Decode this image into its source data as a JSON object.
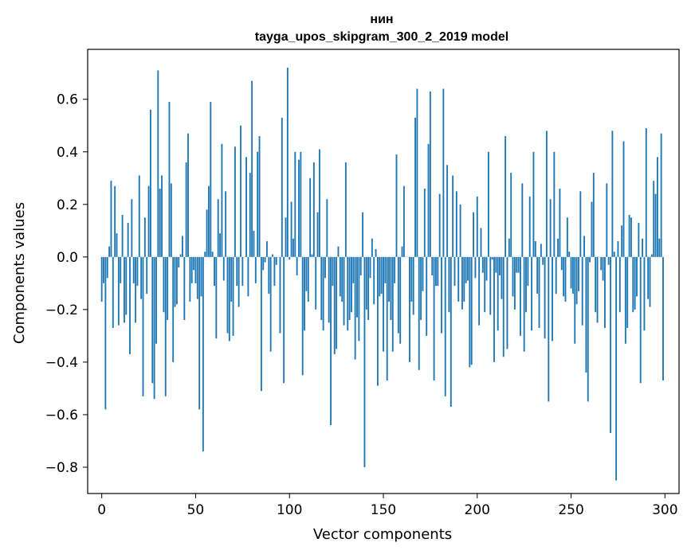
{
  "chart_data": {
    "type": "bar",
    "title": "нин",
    "subtitle": "tayga_upos_skipgram_300_2_2019 model",
    "xlabel": "Vector components",
    "ylabel": "Components values",
    "xlim": [
      -7.5,
      307.5
    ],
    "ylim": [
      -0.9,
      0.79
    ],
    "xticks": [
      0,
      50,
      100,
      150,
      200,
      250,
      300
    ],
    "yticks": [
      -0.8,
      -0.6,
      -0.4,
      -0.2,
      0.0,
      0.2,
      0.4,
      0.6
    ],
    "ytick_labels": [
      "−0.8",
      "−0.6",
      "−0.4",
      "−0.2",
      "0.0",
      "0.2",
      "0.4",
      "0.6"
    ],
    "bar_color": "#1f77b4",
    "values": [
      -0.17,
      -0.1,
      -0.58,
      -0.08,
      0.04,
      0.29,
      -0.27,
      0.27,
      0.09,
      -0.26,
      -0.1,
      0.16,
      -0.25,
      -0.22,
      0.13,
      -0.37,
      0.22,
      -0.1,
      -0.25,
      -0.11,
      0.31,
      -0.16,
      -0.53,
      0.15,
      -0.14,
      0.27,
      0.56,
      -0.48,
      -0.54,
      -0.33,
      0.71,
      0.26,
      0.31,
      -0.21,
      -0.53,
      -0.24,
      0.59,
      0.28,
      -0.4,
      -0.19,
      -0.18,
      -0.04,
      0.01,
      0.08,
      -0.24,
      0.36,
      0.47,
      -0.17,
      -0.1,
      -0.05,
      -0.1,
      -0.16,
      -0.58,
      -0.15,
      -0.74,
      0.02,
      0.18,
      0.27,
      0.59,
      0.02,
      -0.11,
      -0.31,
      0.22,
      0.09,
      0.43,
      -0.09,
      0.25,
      -0.29,
      -0.32,
      -0.17,
      -0.3,
      0.42,
      -0.11,
      -0.19,
      0.5,
      -0.11,
      0.0,
      0.38,
      -0.15,
      0.32,
      0.67,
      0.1,
      -0.1,
      0.4,
      0.46,
      -0.51,
      -0.05,
      -0.02,
      0.06,
      -0.14,
      -0.36,
      0.01,
      -0.11,
      -0.03,
      0.0,
      -0.29,
      0.53,
      -0.48,
      0.15,
      0.72,
      -0.01,
      0.21,
      0.07,
      0.4,
      -0.07,
      0.37,
      0.4,
      -0.45,
      -0.28,
      -0.13,
      -0.17,
      0.3,
      0.01,
      0.36,
      -0.2,
      0.17,
      0.41,
      -0.24,
      -0.28,
      -0.08,
      0.22,
      -0.25,
      -0.64,
      -0.11,
      -0.37,
      -0.35,
      0.04,
      -0.15,
      -0.17,
      -0.26,
      0.36,
      -0.28,
      -0.24,
      -0.21,
      -0.1,
      -0.39,
      -0.23,
      -0.32,
      -0.07,
      0.17,
      -0.8,
      -0.2,
      -0.24,
      -0.08,
      0.07,
      -0.18,
      0.03,
      -0.49,
      -0.15,
      -0.14,
      -0.36,
      -0.1,
      -0.47,
      -0.17,
      -0.24,
      -0.36,
      -0.1,
      0.39,
      -0.29,
      -0.33,
      0.04,
      0.27,
      0.0,
      0.0,
      -0.4,
      -0.17,
      -0.22,
      0.53,
      0.64,
      -0.43,
      -0.24,
      -0.13,
      0.26,
      -0.3,
      0.43,
      0.63,
      -0.07,
      -0.47,
      -0.11,
      -0.11,
      0.24,
      -0.29,
      0.64,
      -0.53,
      0.35,
      -0.21,
      -0.57,
      0.31,
      -0.11,
      0.25,
      -0.17,
      0.2,
      -0.2,
      -0.17,
      -0.1,
      -0.09,
      -0.42,
      -0.41,
      0.17,
      -0.08,
      0.23,
      -0.26,
      0.11,
      -0.06,
      -0.21,
      -0.09,
      0.4,
      -0.22,
      -0.01,
      -0.4,
      -0.06,
      -0.28,
      -0.07,
      -0.16,
      -0.38,
      0.46,
      -0.35,
      0.07,
      0.32,
      -0.15,
      -0.2,
      -0.06,
      -0.06,
      -0.3,
      0.28,
      -0.36,
      -0.21,
      -0.11,
      0.23,
      -0.28,
      0.4,
      0.06,
      -0.14,
      -0.27,
      0.05,
      -0.03,
      -0.31,
      0.48,
      -0.55,
      0.22,
      -0.32,
      0.4,
      -0.14,
      0.07,
      0.26,
      -0.05,
      -0.15,
      -0.17,
      0.15,
      0.02,
      -0.12,
      -0.14,
      -0.33,
      -0.18,
      -0.13,
      0.25,
      -0.26,
      0.08,
      -0.44,
      -0.55,
      -0.02,
      0.21,
      0.32,
      -0.21,
      -0.25,
      0.0,
      -0.05,
      -0.09,
      -0.27,
      0.28,
      -0.03,
      -0.67,
      0.48,
      0.02,
      -0.85,
      0.06,
      -0.21,
      0.12,
      0.44,
      -0.33,
      -0.27,
      0.16,
      0.15,
      -0.21,
      -0.2,
      -0.15,
      0.13,
      -0.48,
      0.07,
      -0.28,
      0.49,
      -0.16,
      -0.19,
      0.01,
      0.29,
      0.24,
      0.38,
      0.07,
      0.47,
      -0.47
    ]
  }
}
